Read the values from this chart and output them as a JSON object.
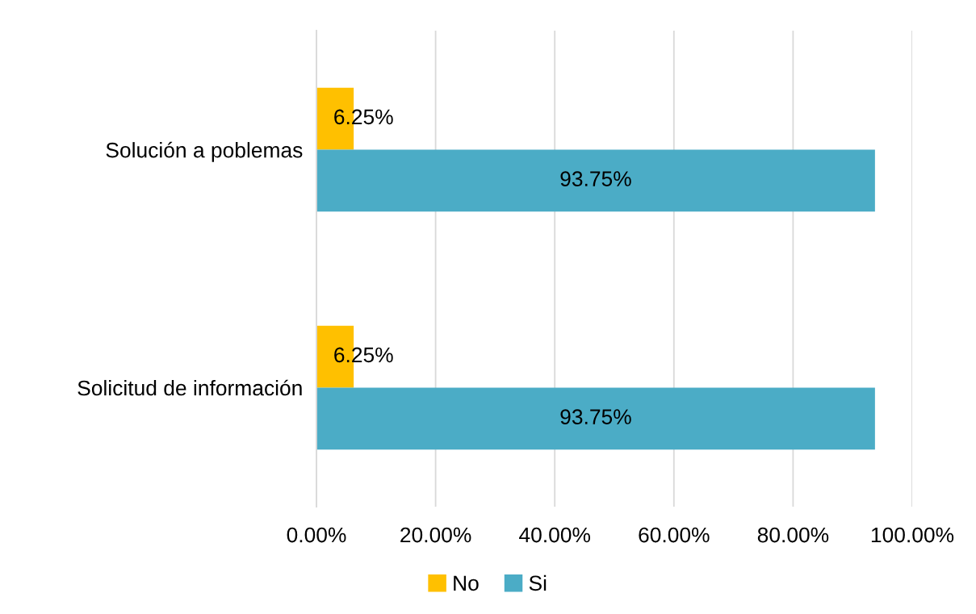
{
  "chart_data": {
    "type": "bar",
    "orientation": "horizontal",
    "categories": [
      "Solución a poblemas",
      "Solicitud de información"
    ],
    "series": [
      {
        "name": "No",
        "color": "#ffc000",
        "values": [
          6.25,
          6.25
        ],
        "value_labels": [
          "6.25%",
          "6.25%"
        ]
      },
      {
        "name": "Si",
        "color": "#4bacc6",
        "values": [
          93.75,
          93.75
        ],
        "value_labels": [
          "93.75%",
          "93.75%"
        ]
      }
    ],
    "xlim": [
      0,
      100
    ],
    "xticks": [
      {
        "value": 0,
        "label": "0.00%"
      },
      {
        "value": 20,
        "label": "20.00%"
      },
      {
        "value": 40,
        "label": "40.00%"
      },
      {
        "value": 60,
        "label": "60.00%"
      },
      {
        "value": 80,
        "label": "80.00%"
      },
      {
        "value": 100,
        "label": "100.00%"
      }
    ],
    "grid": "x",
    "legend": "bottom"
  }
}
